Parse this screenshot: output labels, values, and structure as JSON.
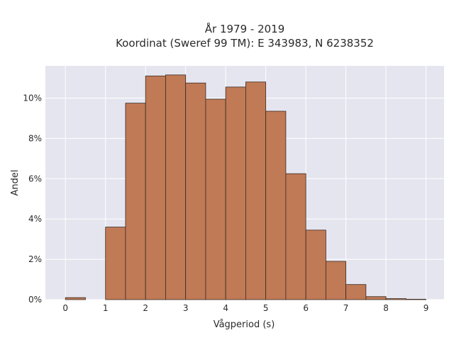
{
  "chart_data": {
    "type": "bar",
    "title": "År 1979 - 2019",
    "subtitle": "Koordinat (Sweref 99 TM): E 343983, N 6238352",
    "xlabel": "Vågperiod (s)",
    "ylabel": "Andel",
    "xlim": [
      -0.5,
      9.45
    ],
    "ylim": [
      0,
      11.6
    ],
    "x_ticks": [
      0,
      1,
      2,
      3,
      4,
      5,
      6,
      7,
      8,
      9
    ],
    "y_ticks": [
      0,
      2,
      4,
      6,
      8,
      10
    ],
    "y_tick_suffix": "%",
    "bin_width": 0.5,
    "bin_starts": [
      0,
      0.5,
      1,
      1.5,
      2,
      2.5,
      3,
      3.5,
      4,
      4.5,
      5,
      5.5,
      6,
      6.5,
      7,
      7.5,
      8,
      8.5
    ],
    "values": [
      0.1,
      0,
      3.6,
      9.75,
      11.1,
      11.15,
      10.75,
      9.95,
      10.55,
      10.8,
      9.35,
      6.25,
      3.45,
      1.9,
      0.75,
      0.15,
      0.05,
      0.02
    ],
    "grid": true,
    "colors": {
      "bar": "#c07a56",
      "bar_edge": "#3a2a20",
      "plot_background": "#e5e5ef",
      "grid": "#ffffff"
    }
  }
}
